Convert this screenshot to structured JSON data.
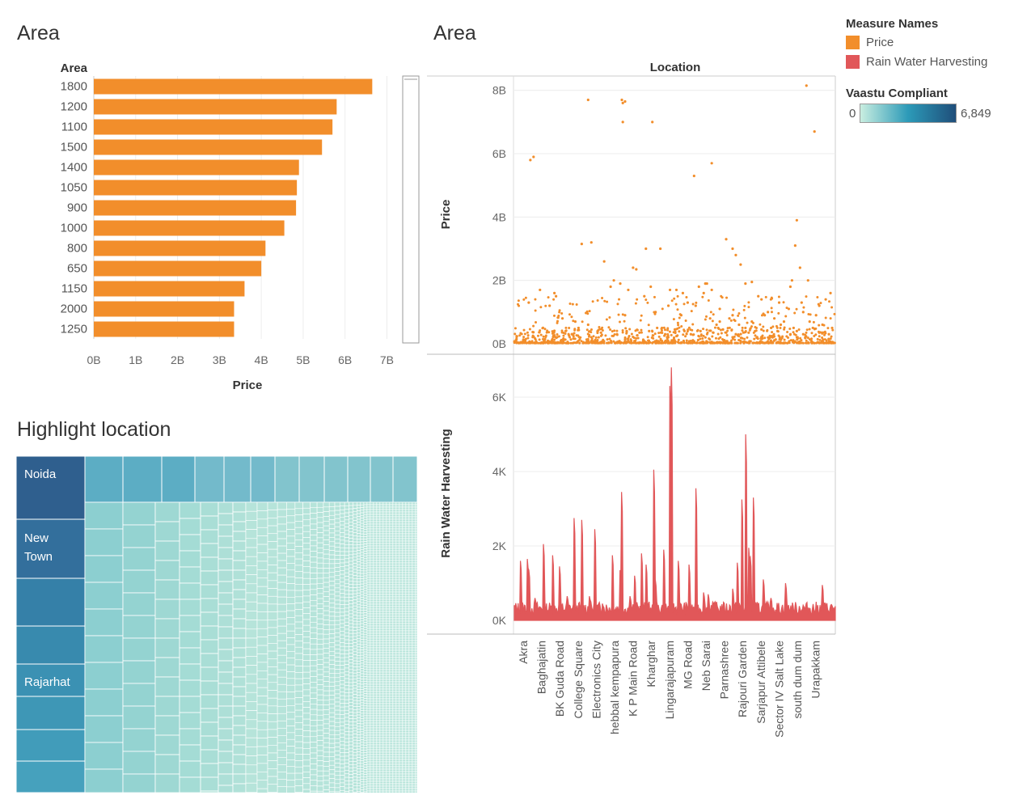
{
  "dashboard": {
    "bar_title": "Area",
    "scatter_title": "Area",
    "treemap_title": "Highlight location"
  },
  "legend": {
    "measure_title": "Measure Names",
    "measures": [
      {
        "label": "Price",
        "color": "#F28E2B"
      },
      {
        "label": "Rain Water Harvesting",
        "color": "#E15759"
      }
    ],
    "vaastu_title": "Vaastu Compliant",
    "vaastu_min": "0",
    "vaastu_max": "6,849",
    "gradient_colors": [
      "#c9eee0",
      "#2c9ab8",
      "#1f4e7a"
    ]
  },
  "chart_data": [
    {
      "type": "bar",
      "orientation": "horizontal",
      "title": "Area",
      "row_header": "Area",
      "xlabel": "Price",
      "categories": [
        "1800",
        "1200",
        "1100",
        "1500",
        "1400",
        "1050",
        "900",
        "1000",
        "800",
        "650",
        "1150",
        "2000",
        "1250"
      ],
      "values": [
        6.65,
        5.8,
        5.7,
        5.45,
        4.9,
        4.85,
        4.83,
        4.55,
        4.1,
        4.0,
        3.6,
        3.35,
        3.35
      ],
      "value_unit": "B",
      "xticks": [
        "0B",
        "1B",
        "2B",
        "3B",
        "4B",
        "5B",
        "6B",
        "7B"
      ],
      "xlim": [
        0,
        7.3
      ],
      "color": "#F28E2B"
    },
    {
      "type": "scatter",
      "title": "Area",
      "column_header": "Location",
      "ylabel": "Price",
      "yticks": [
        "0B",
        "2B",
        "4B",
        "6B",
        "8B"
      ],
      "ylim": [
        0,
        8.3
      ],
      "color": "#F28E2B",
      "points": [
        [
          0.05,
          5.8
        ],
        [
          0.06,
          5.9
        ],
        [
          0.08,
          1.7
        ],
        [
          0.045,
          1.3
        ],
        [
          0.11,
          1.2
        ],
        [
          0.125,
          1.6
        ],
        [
          0.13,
          1.5
        ],
        [
          0.15,
          0.8
        ],
        [
          0.21,
          3.15
        ],
        [
          0.24,
          3.2
        ],
        [
          0.19,
          0.7
        ],
        [
          0.28,
          2.6
        ],
        [
          0.31,
          2.0
        ],
        [
          0.3,
          1.8
        ],
        [
          0.33,
          1.9
        ],
        [
          0.355,
          1.7
        ],
        [
          0.37,
          2.4
        ],
        [
          0.38,
          2.35
        ],
        [
          0.405,
          1.5
        ],
        [
          0.345,
          0.9
        ],
        [
          0.23,
          0.6
        ],
        [
          0.23,
          7.7
        ],
        [
          0.335,
          7.7
        ],
        [
          0.338,
          7.6
        ],
        [
          0.345,
          7.65
        ],
        [
          0.41,
          3.0
        ],
        [
          0.425,
          1.8
        ],
        [
          0.455,
          3.0
        ],
        [
          0.485,
          1.7
        ],
        [
          0.505,
          1.7
        ],
        [
          0.575,
          1.8
        ],
        [
          0.565,
          1.2
        ],
        [
          0.59,
          1.6
        ],
        [
          0.61,
          0.8
        ],
        [
          0.48,
          1.2
        ],
        [
          0.44,
          1.0
        ],
        [
          0.52,
          0.9
        ],
        [
          0.54,
          1.3
        ],
        [
          0.64,
          0.7
        ],
        [
          0.67,
          0.8
        ],
        [
          0.46,
          0.5
        ],
        [
          0.53,
          0.4
        ],
        [
          0.338,
          7.0
        ],
        [
          0.43,
          7.0
        ],
        [
          0.63,
          0.6
        ],
        [
          0.635,
          0.5
        ],
        [
          0.445,
          0.5
        ],
        [
          0.525,
          1.6
        ],
        [
          0.595,
          1.9
        ],
        [
          0.6,
          1.9
        ],
        [
          0.615,
          1.7
        ],
        [
          0.56,
          5.3
        ],
        [
          0.615,
          5.7
        ],
        [
          0.66,
          3.3
        ],
        [
          0.68,
          3.0
        ],
        [
          0.69,
          2.8
        ],
        [
          0.705,
          2.5
        ],
        [
          0.72,
          1.9
        ],
        [
          0.74,
          1.95
        ],
        [
          0.77,
          1.4
        ],
        [
          0.79,
          1.0
        ],
        [
          0.825,
          1.3
        ],
        [
          0.86,
          1.8
        ],
        [
          0.865,
          2.0
        ],
        [
          0.88,
          3.9
        ],
        [
          0.89,
          2.4
        ],
        [
          0.895,
          1.3
        ],
        [
          0.9,
          1.0
        ],
        [
          0.915,
          2.0
        ],
        [
          0.94,
          0.9
        ],
        [
          0.95,
          1.2
        ],
        [
          0.97,
          1.4
        ],
        [
          0.985,
          1.6
        ],
        [
          0.7,
          0.6
        ],
        [
          0.72,
          0.5
        ],
        [
          0.75,
          0.4
        ],
        [
          0.8,
          0.5
        ],
        [
          0.84,
          0.7
        ],
        [
          0.83,
          0.6
        ],
        [
          0.87,
          0.5
        ],
        [
          0.92,
          0.7
        ],
        [
          0.93,
          0.5
        ],
        [
          0.96,
          0.6
        ],
        [
          0.99,
          0.5
        ],
        [
          0.64,
          1.1
        ],
        [
          0.68,
          0.9
        ],
        [
          0.74,
          0.7
        ],
        [
          0.76,
          1.5
        ],
        [
          0.78,
          0.9
        ],
        [
          0.81,
          0.8
        ],
        [
          0.855,
          1.1
        ],
        [
          0.9,
          0.3
        ],
        [
          0.875,
          3.1
        ],
        [
          0.91,
          8.15
        ],
        [
          0.935,
          6.7
        ],
        [
          0.16,
          0.4
        ],
        [
          0.18,
          0.3
        ],
        [
          0.2,
          0.5
        ],
        [
          0.26,
          0.4
        ],
        [
          0.27,
          0.35
        ],
        [
          0.32,
          0.3
        ],
        [
          0.35,
          0.4
        ],
        [
          0.39,
          0.35
        ],
        [
          0.42,
          0.4
        ],
        [
          0.47,
          0.3
        ],
        [
          0.5,
          0.45
        ],
        [
          0.55,
          0.3
        ],
        [
          0.58,
          0.4
        ],
        [
          0.62,
          0.35
        ],
        [
          0.65,
          0.45
        ],
        [
          0.69,
          0.3
        ],
        [
          0.73,
          0.35
        ],
        [
          0.77,
          0.45
        ],
        [
          0.82,
          0.4
        ],
        [
          0.86,
          0.3
        ],
        [
          0.88,
          0.4
        ],
        [
          0.95,
          0.35
        ],
        [
          0.98,
          0.3
        ]
      ]
    },
    {
      "type": "area",
      "ylabel": "Rain Water Harvesting",
      "yticks": [
        "0K",
        "2K",
        "4K",
        "6K"
      ],
      "ylim": [
        0,
        7000
      ],
      "color": "#E15759",
      "x_labels": [
        "Akra",
        "Baghajatin",
        "BK Guda Road",
        "College Square",
        "Electronics City",
        "hebbal kempapura",
        "K P Main Road",
        "Kharghar",
        "Lingarajapuram",
        "MG Road",
        "Neb Sarai",
        "Parnashree",
        "Rajouri Garden",
        "Sarjapur Attibele",
        "Sector IV Salt Lake",
        "south dum dum",
        "Urapakkam"
      ],
      "peaks": [
        [
          0.02,
          1600
        ],
        [
          0.04,
          1650
        ],
        [
          0.045,
          1350
        ],
        [
          0.065,
          600
        ],
        [
          0.09,
          2050
        ],
        [
          0.12,
          1750
        ],
        [
          0.14,
          1450
        ],
        [
          0.165,
          650
        ],
        [
          0.185,
          2750
        ],
        [
          0.21,
          2700
        ],
        [
          0.235,
          650
        ],
        [
          0.25,
          2450
        ],
        [
          0.275,
          450
        ],
        [
          0.305,
          1750
        ],
        [
          0.33,
          1350
        ],
        [
          0.335,
          3450
        ],
        [
          0.36,
          650
        ],
        [
          0.375,
          1200
        ],
        [
          0.395,
          1800
        ],
        [
          0.41,
          1500
        ],
        [
          0.435,
          4050
        ],
        [
          0.44,
          1100
        ],
        [
          0.465,
          1900
        ],
        [
          0.485,
          6300
        ],
        [
          0.49,
          6800
        ],
        [
          0.51,
          1600
        ],
        [
          0.545,
          1500
        ],
        [
          0.565,
          3550
        ],
        [
          0.59,
          750
        ],
        [
          0.605,
          700
        ],
        [
          0.625,
          500
        ],
        [
          0.68,
          850
        ],
        [
          0.695,
          1550
        ],
        [
          0.71,
          3250
        ],
        [
          0.72,
          5000
        ],
        [
          0.73,
          1950
        ],
        [
          0.735,
          1700
        ],
        [
          0.745,
          3300
        ],
        [
          0.775,
          1100
        ],
        [
          0.8,
          600
        ],
        [
          0.845,
          1000
        ],
        [
          0.96,
          950
        ]
      ]
    },
    {
      "type": "treemap",
      "title": "Highlight location",
      "labels": [
        "Noida",
        "New Town",
        "Rajarhat"
      ]
    }
  ]
}
